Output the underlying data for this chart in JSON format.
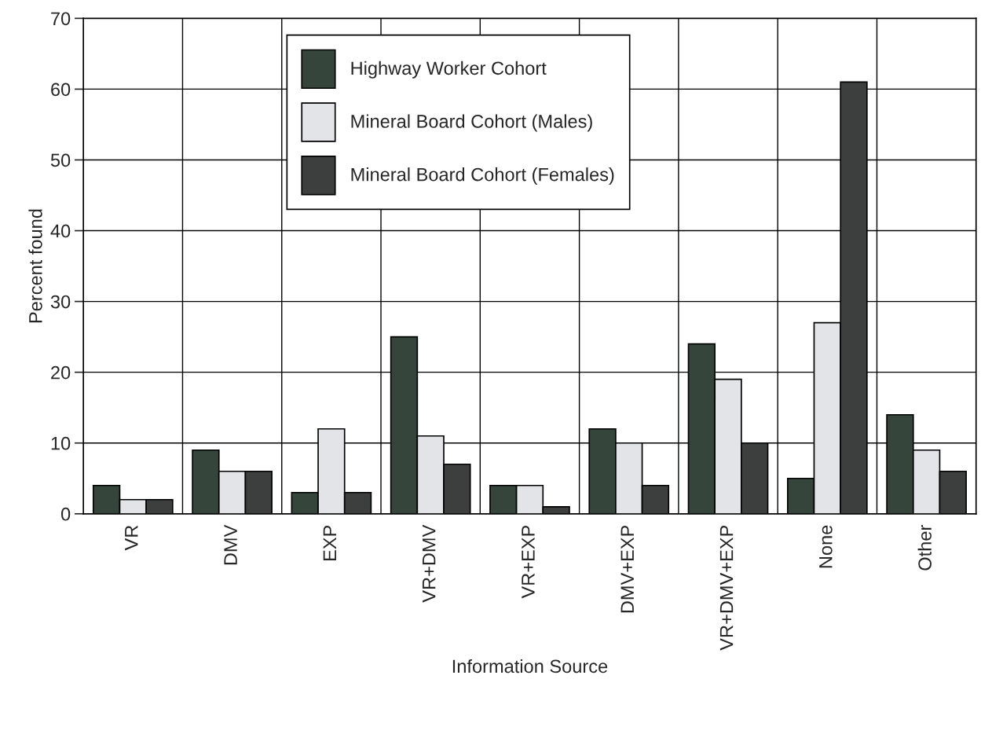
{
  "chart_data": {
    "type": "bar",
    "xlabel": "Information Source",
    "ylabel": "Percent found",
    "categories": [
      "VR",
      "DMV",
      "EXP",
      "VR+DMV",
      "VR+EXP",
      "DMV+EXP",
      "VR+DMV+EXP",
      "None",
      "Other"
    ],
    "series": [
      {
        "name": "Highway Worker Cohort",
        "color": "#35453b",
        "values": [
          4,
          9,
          3,
          25,
          4,
          12,
          24,
          5,
          14
        ]
      },
      {
        "name": "Mineral Board Cohort (Males)",
        "color": "#e2e4e8",
        "values": [
          2,
          6,
          12,
          11,
          4,
          10,
          19,
          27,
          9
        ]
      },
      {
        "name": "Mineral Board Cohort (Females)",
        "color": "#3d3f3e",
        "values": [
          2,
          6,
          3,
          7,
          1,
          4,
          10,
          61,
          6
        ]
      }
    ],
    "ylim": [
      0,
      70
    ],
    "yticks": [
      0,
      10,
      20,
      30,
      40,
      50,
      60,
      70
    ],
    "grid": true,
    "legend": "top"
  }
}
